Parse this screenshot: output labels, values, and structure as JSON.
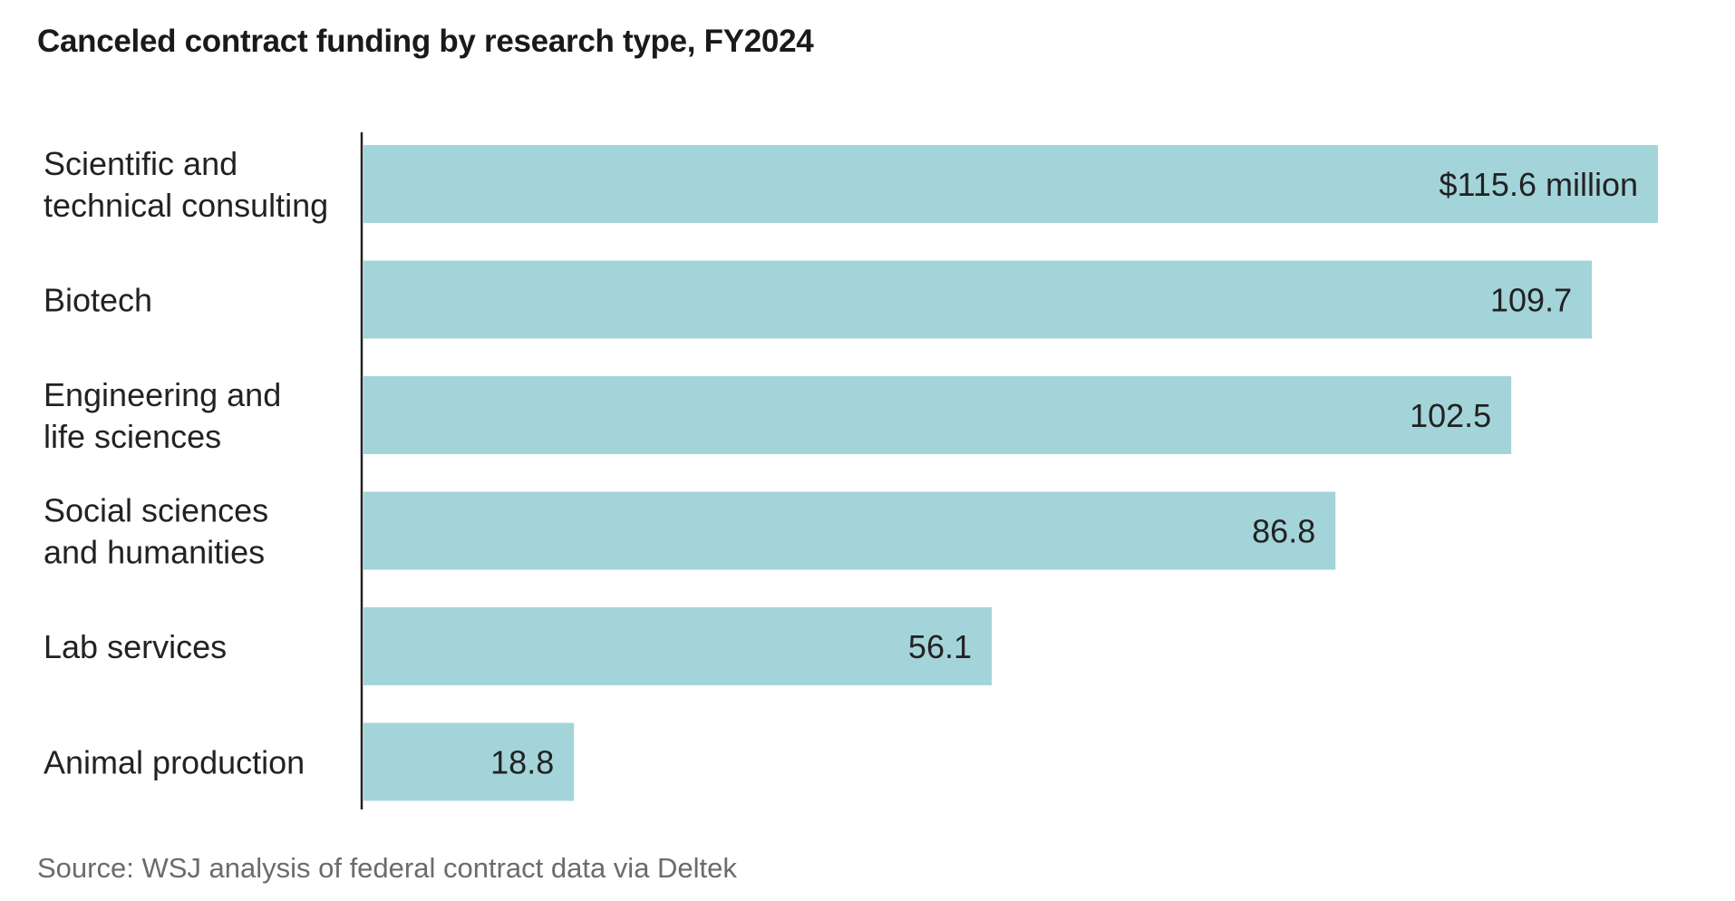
{
  "chart_data": {
    "type": "bar",
    "orientation": "horizontal",
    "title": "Canceled contract funding by research type, FY2024",
    "categories": [
      [
        "Scientific and",
        "technical consulting"
      ],
      [
        "Biotech"
      ],
      [
        "Engineering and",
        "life sciences"
      ],
      [
        "Social sciences",
        "and humanities"
      ],
      [
        "Lab services"
      ],
      [
        "Animal production"
      ]
    ],
    "values": [
      115.6,
      109.7,
      102.5,
      86.8,
      56.1,
      18.8
    ],
    "value_labels": [
      "$115.6 million",
      "109.7",
      "102.5",
      "86.8",
      "56.1",
      "18.8"
    ],
    "unit": "million dollars",
    "xlim": [
      0,
      115.6
    ],
    "bar_color": "#a3d4d9",
    "axis_color": "#222222",
    "grid": false,
    "legend": "none"
  },
  "source": "Source: WSJ analysis of federal contract data via Deltek"
}
